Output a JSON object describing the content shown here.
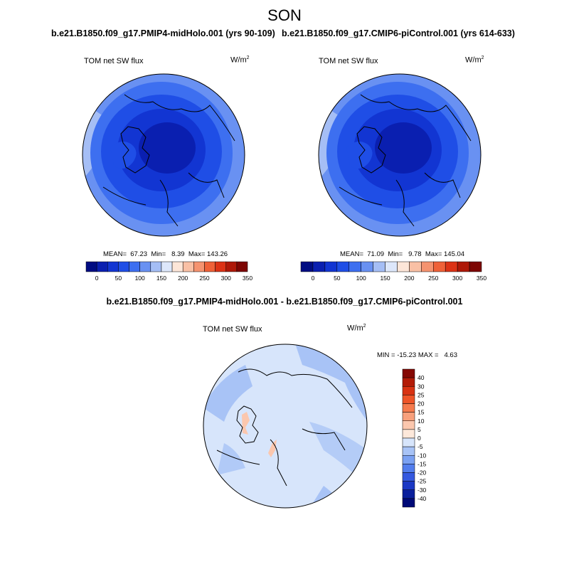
{
  "season": "SON",
  "panels": [
    {
      "case": "b.e21.B1850.f09_g17.PMIP4-midHolo.001 (yrs 90-109)",
      "field": "TOM net SW flux",
      "units_base": "W/m",
      "units_exp": "2",
      "stats": "MEAN=  67.23  Min=   8.39  Max= 143.26",
      "mean": 67.23,
      "min": 8.39,
      "max": 143.26
    },
    {
      "case": "b.e21.B1850.f09_g17.CMIP6-piControl.001 (yrs 614-633)",
      "field": "TOM net SW flux",
      "units_base": "W/m",
      "units_exp": "2",
      "stats": "MEAN=  71.09  Min=   9.78  Max= 145.04",
      "mean": 71.09,
      "min": 9.78,
      "max": 145.04
    }
  ],
  "diff": {
    "title": "b.e21.B1850.f09_g17.PMIP4-midHolo.001 - b.e21.B1850.f09_g17.CMIP6-piControl.001",
    "field": "TOM net SW flux",
    "units_base": "W/m",
    "units_exp": "2",
    "stats": "MIN = -15.23 MAX =   4.63",
    "min": -15.23,
    "max": 4.63
  },
  "main_colorbar": {
    "labels": [
      "0",
      "50",
      "100",
      "150",
      "200",
      "250",
      "300",
      "350"
    ],
    "colors": [
      "#000c82",
      "#0a1fb0",
      "#1235d2",
      "#1f4ee6",
      "#3d6ff0",
      "#6991f2",
      "#a5bef5",
      "#dde7fb",
      "#fde6d8",
      "#f9c0a5",
      "#f59370",
      "#ef6138",
      "#dc3215",
      "#ae1808",
      "#7d0603"
    ]
  },
  "diff_colorbar": {
    "labels": [
      "40",
      "30",
      "25",
      "20",
      "15",
      "10",
      "5",
      "0",
      "-5",
      "-10",
      "-15",
      "-20",
      "-25",
      "-30",
      "-40"
    ],
    "colors": [
      "#850803",
      "#b31b07",
      "#d83212",
      "#ee5428",
      "#f57a4d",
      "#f8a07c",
      "#fbc7ae",
      "#fde8da",
      "#d7e5fb",
      "#a8c3f6",
      "#7ba1f2",
      "#527ded",
      "#3559e0",
      "#1b38c4",
      "#0a1f9c",
      "#000a78"
    ]
  }
}
